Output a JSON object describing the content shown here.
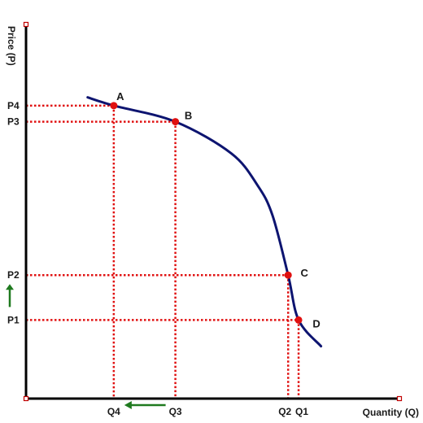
{
  "chart_data": {
    "type": "line",
    "xlabel": "Quantity (Q)",
    "ylabel": "Price (P)",
    "xlim": [
      0,
      100
    ],
    "ylim": [
      0,
      100
    ],
    "colors": {
      "curve": "#0d1470",
      "points": "#e01010",
      "guides": "#e01010",
      "axes": "#000000",
      "arrows": "#1f7a1f"
    },
    "curve": {
      "x": [
        16.5,
        23.5,
        40,
        55,
        62,
        66,
        70.2,
        73,
        79
      ],
      "y": [
        80.5,
        78.3,
        74,
        65.5,
        57,
        49,
        33,
        21,
        14
      ]
    },
    "points": [
      {
        "label": "A",
        "x": 23.5,
        "y": 78.3
      },
      {
        "label": "B",
        "x": 40,
        "y": 74
      },
      {
        "label": "C",
        "x": 70.2,
        "y": 33
      },
      {
        "label": "D",
        "x": 73,
        "y": 21
      }
    ],
    "y_ticks": [
      {
        "label": "P4",
        "value": 78.3
      },
      {
        "label": "P3",
        "value": 74
      },
      {
        "label": "P2",
        "value": 33
      },
      {
        "label": "P1",
        "value": 21
      }
    ],
    "x_ticks": [
      {
        "label": "Q4",
        "value": 23.5
      },
      {
        "label": "Q3",
        "value": 40
      },
      {
        "label": "Q2",
        "value": 70.2
      },
      {
        "label": "Q1",
        "value": 73
      }
    ],
    "arrows": [
      {
        "name": "price-rise-arrow",
        "direction": "up",
        "between": [
          "P1",
          "P2"
        ]
      },
      {
        "name": "quantity-fall-arrow",
        "direction": "left",
        "between": [
          "Q3",
          "Q4"
        ]
      }
    ]
  }
}
